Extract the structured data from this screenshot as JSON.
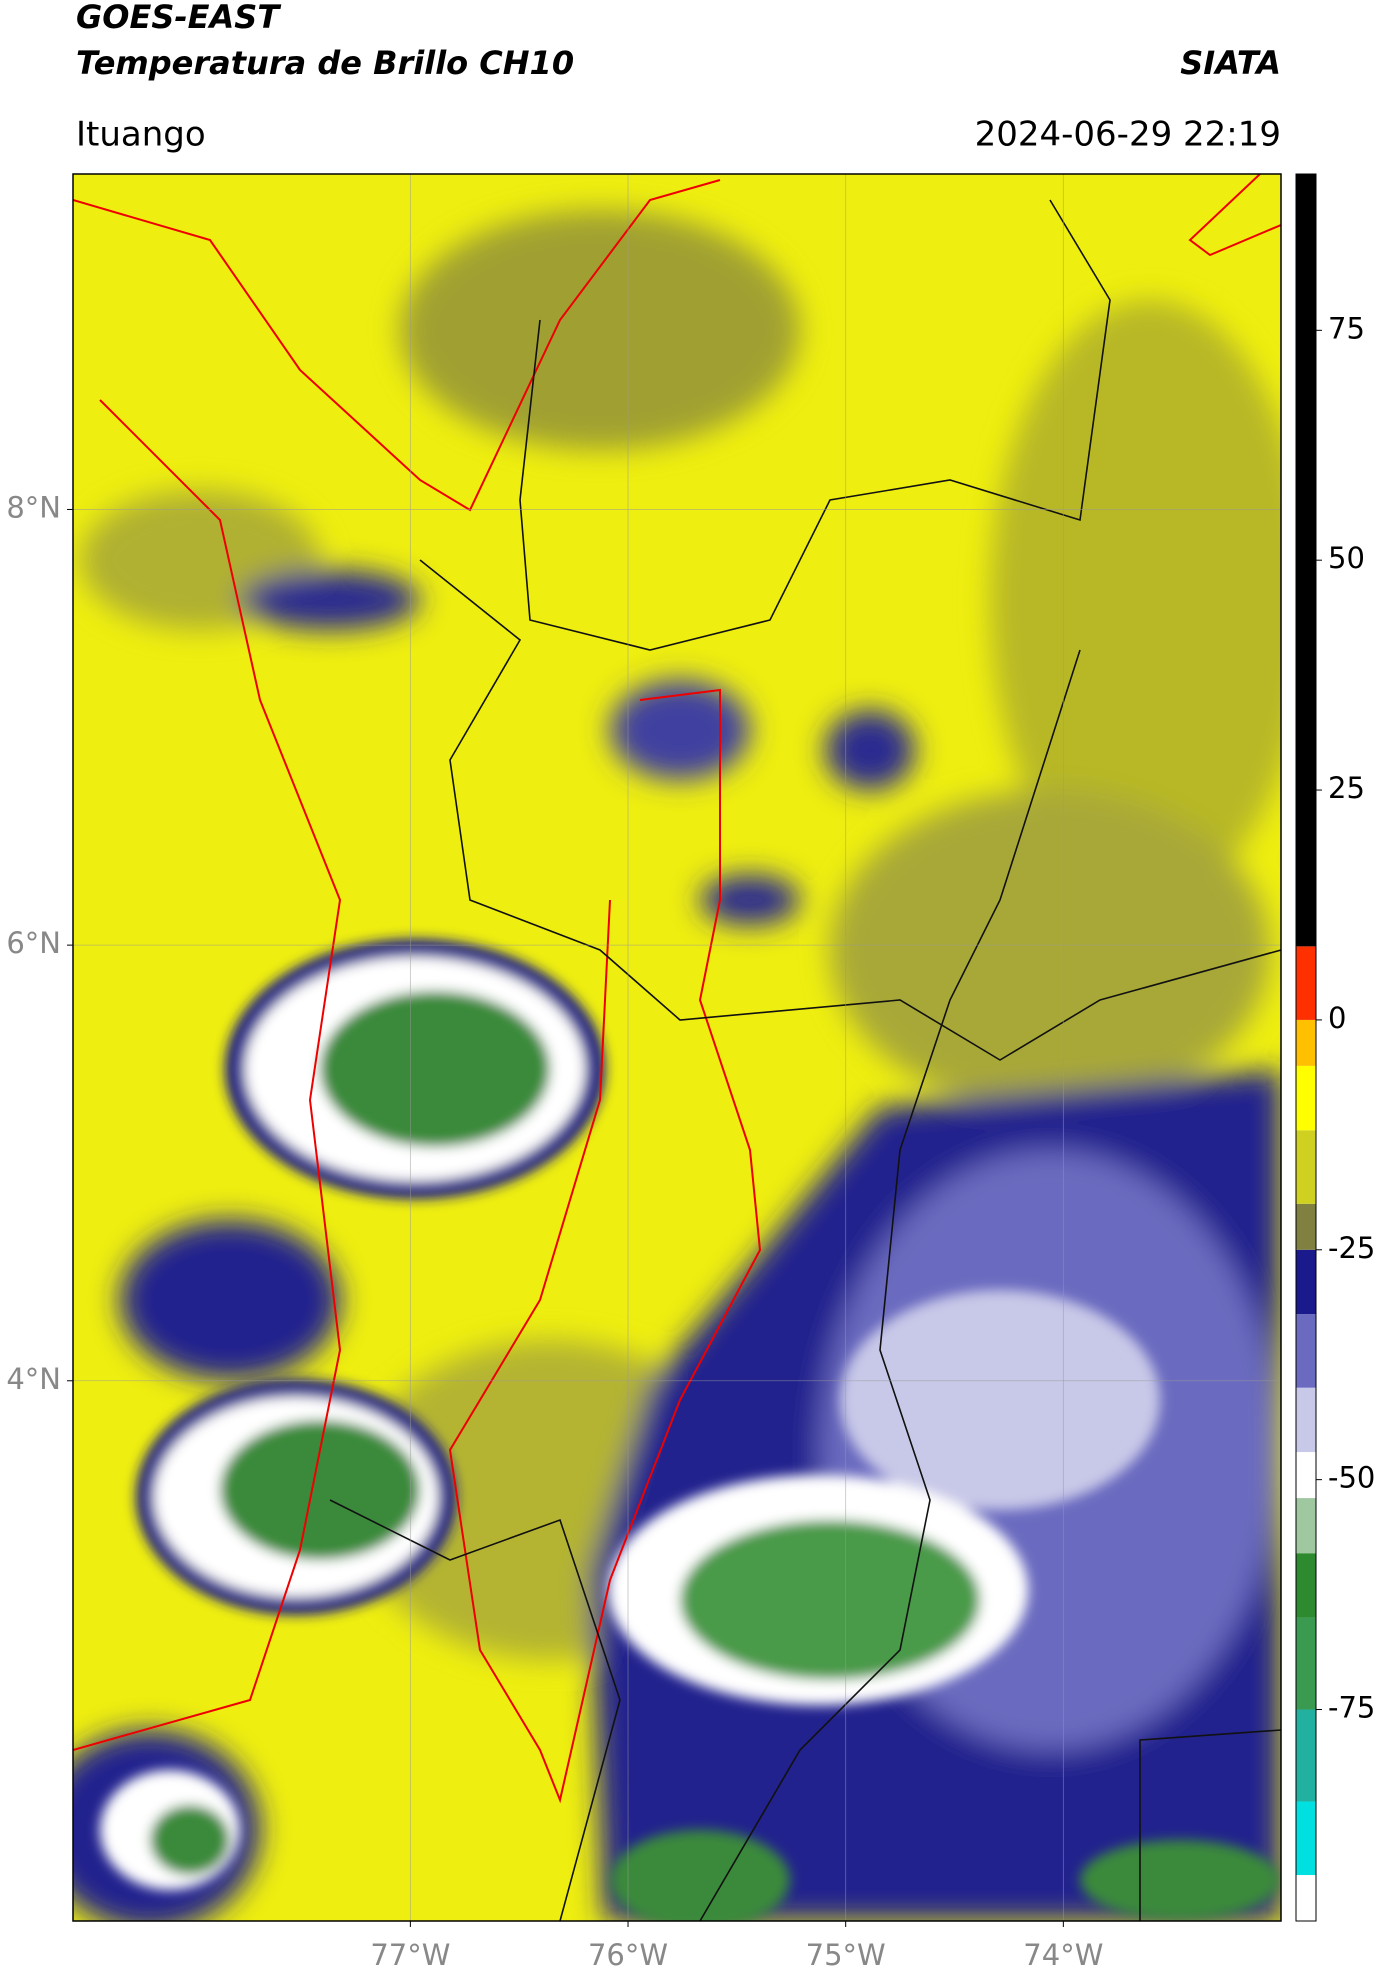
{
  "header": {
    "title_line1": "GOES-EAST",
    "title_line2": "Temperatura de Brillo CH10",
    "org": "SIATA",
    "region": "Ituango",
    "timestamp": "2024-06-29 22:19"
  },
  "map": {
    "type": "map",
    "xlim": [
      -78.55,
      -73.0
    ],
    "ylim": [
      1.52,
      9.54
    ],
    "xticks": [
      {
        "value": -77,
        "label": "77°W"
      },
      {
        "value": -76,
        "label": "76°W"
      },
      {
        "value": -75,
        "label": "75°W"
      },
      {
        "value": -74,
        "label": "74°W"
      }
    ],
    "yticks": [
      {
        "value": 4,
        "label": "4°N"
      },
      {
        "value": 6,
        "label": "6°N"
      },
      {
        "value": 8,
        "label": "8°N"
      }
    ],
    "grid": true
  },
  "colorbar": {
    "lim": [
      -98,
      92
    ],
    "ticks": [
      -75,
      -50,
      -25,
      0,
      25,
      50,
      75
    ],
    "bands": [
      {
        "from": -98,
        "to": -93,
        "color": "#ffffff"
      },
      {
        "from": -93,
        "to": -85,
        "color": "#00e0e0"
      },
      {
        "from": -85,
        "to": -75,
        "color": "#22b0a0"
      },
      {
        "from": -75,
        "to": -65,
        "color": "#3a9a50"
      },
      {
        "from": -65,
        "to": -58,
        "color": "#2e8a2e"
      },
      {
        "from": -58,
        "to": -52,
        "color": "#a0c8a0"
      },
      {
        "from": -52,
        "to": -47,
        "color": "#ffffff"
      },
      {
        "from": -47,
        "to": -40,
        "color": "#c8c8e8"
      },
      {
        "from": -40,
        "to": -32,
        "color": "#6a6ac0"
      },
      {
        "from": -32,
        "to": -25,
        "color": "#1a1a8c"
      },
      {
        "from": -25,
        "to": -20,
        "color": "#808040"
      },
      {
        "from": -20,
        "to": -12,
        "color": "#d0d020"
      },
      {
        "from": -12,
        "to": -5,
        "color": "#ffff00"
      },
      {
        "from": -5,
        "to": 0,
        "color": "#ffc000"
      },
      {
        "from": 0,
        "to": 8,
        "color": "#ff3000"
      },
      {
        "from": 8,
        "to": 92,
        "color": "#000000"
      }
    ]
  }
}
